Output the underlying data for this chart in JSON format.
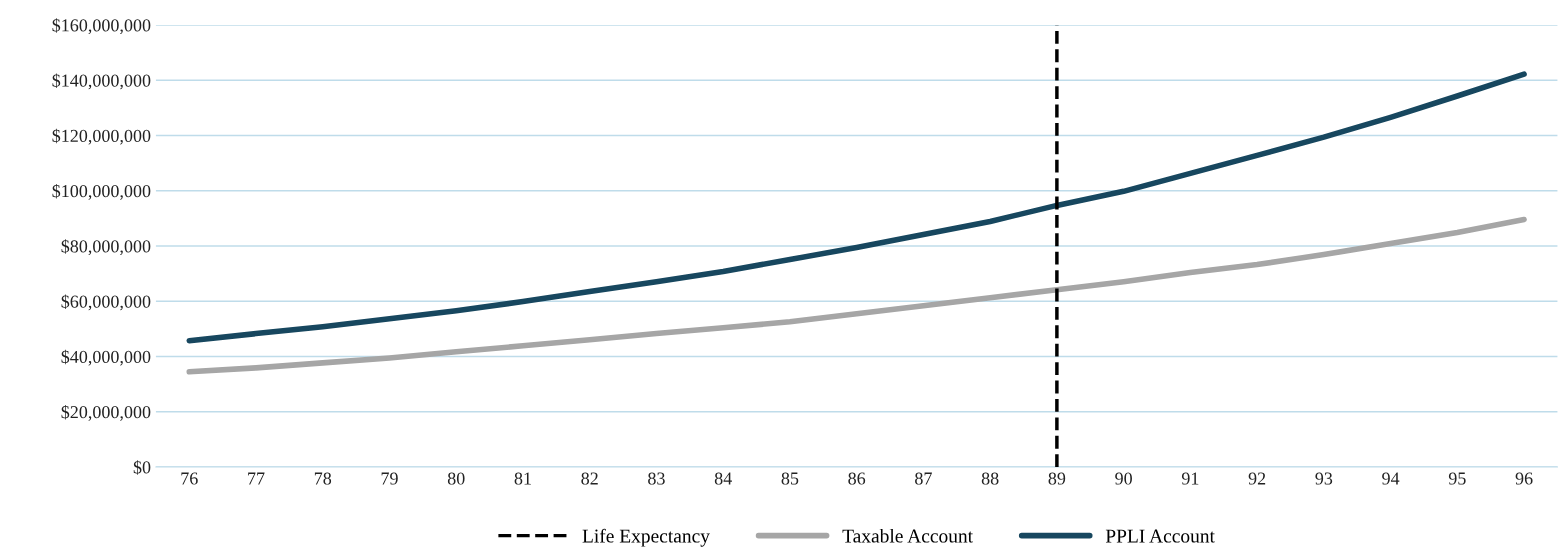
{
  "chart_data": {
    "type": "line",
    "categories": [
      "76",
      "77",
      "78",
      "79",
      "80",
      "81",
      "82",
      "83",
      "84",
      "85",
      "86",
      "87",
      "88",
      "89",
      "90",
      "91",
      "92",
      "93",
      "94",
      "95",
      "96"
    ],
    "series": [
      {
        "name": "Taxable Account",
        "color": "#a6a6a6",
        "values": [
          34500000,
          35900000,
          37700000,
          39500000,
          41700000,
          43900000,
          46100000,
          48300000,
          50400000,
          52600000,
          55500000,
          58400000,
          61300000,
          64200000,
          67100000,
          70400000,
          73300000,
          76900000,
          80900000,
          84900000,
          89600000
        ]
      },
      {
        "name": "PPLI Account",
        "color": "#17475f",
        "values": [
          45700000,
          48300000,
          50800000,
          53700000,
          56600000,
          59900000,
          63500000,
          67100000,
          70800000,
          75100000,
          79500000,
          84200000,
          88900000,
          94700000,
          99800000,
          106300000,
          112800000,
          119400000,
          126600000,
          134300000,
          142200000
        ]
      }
    ],
    "ylim": [
      0,
      160000000
    ],
    "yticks": [
      {
        "value": 0,
        "label": "$0"
      },
      {
        "value": 20000000,
        "label": "$20,000,000"
      },
      {
        "value": 40000000,
        "label": "$40,000,000"
      },
      {
        "value": 60000000,
        "label": "$60,000,000"
      },
      {
        "value": 80000000,
        "label": "$80,000,000"
      },
      {
        "value": 100000000,
        "label": "$100,000,000"
      },
      {
        "value": 120000000,
        "label": "$120,000,000"
      },
      {
        "value": 140000000,
        "label": "$140,000,000"
      },
      {
        "value": 160000000,
        "label": "$160,000,000"
      }
    ],
    "ref_lines": [
      {
        "axis": "x",
        "value": "89",
        "label": "Life Expectancy",
        "color": "#000000",
        "line_style": "dashed"
      }
    ],
    "grid": "y",
    "legend": "bottom",
    "marker": "none",
    "line_style": "solid"
  }
}
